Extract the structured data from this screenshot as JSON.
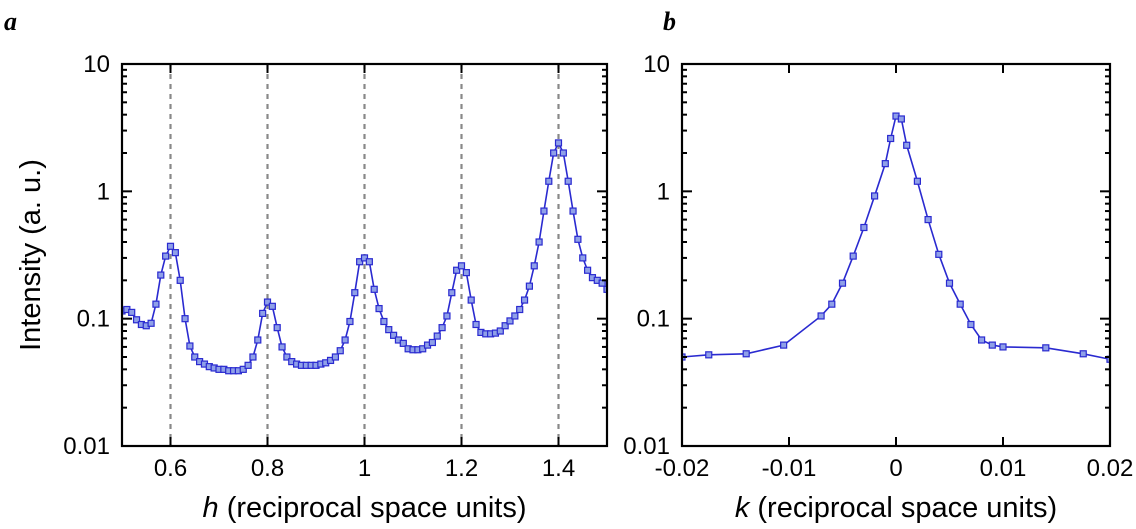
{
  "figure": {
    "panels": [
      "a",
      "b"
    ],
    "colors": {
      "series": "#2a2ad0",
      "marker_fill": "#8fa0e8",
      "reference_lines": "#888888"
    }
  },
  "chart_data": [
    {
      "panel": "a",
      "type": "line",
      "title": "",
      "xlabel_var": "h",
      "xlabel_rest": " (reciprocal space units)",
      "ylabel": "Intensity (a. u.)",
      "xlim": [
        0.5,
        1.5
      ],
      "ylim": [
        0.01,
        10
      ],
      "yscale": "log",
      "x_ticks": [
        0.6,
        0.8,
        1.0,
        1.2,
        1.4
      ],
      "x_tick_labels": [
        "0.6",
        "0.8",
        "1",
        "1.2",
        "1.4"
      ],
      "y_ticks": [
        0.01,
        0.1,
        1,
        10
      ],
      "y_tick_labels": [
        "0.01",
        "0.1",
        "1",
        "10"
      ],
      "reference_lines_x": [
        0.6,
        0.8,
        1.0,
        1.2,
        1.4
      ],
      "series": [
        {
          "marker": "square",
          "points": [
            [
              0.5,
              0.115
            ],
            [
              0.51,
              0.118
            ],
            [
              0.52,
              0.112
            ],
            [
              0.53,
              0.098
            ],
            [
              0.54,
              0.09
            ],
            [
              0.55,
              0.088
            ],
            [
              0.56,
              0.092
            ],
            [
              0.57,
              0.13
            ],
            [
              0.58,
              0.22
            ],
            [
              0.59,
              0.31
            ],
            [
              0.6,
              0.37
            ],
            [
              0.61,
              0.33
            ],
            [
              0.62,
              0.2
            ],
            [
              0.63,
              0.1
            ],
            [
              0.64,
              0.061
            ],
            [
              0.65,
              0.05
            ],
            [
              0.66,
              0.046
            ],
            [
              0.67,
              0.044
            ],
            [
              0.68,
              0.042
            ],
            [
              0.69,
              0.041
            ],
            [
              0.7,
              0.04
            ],
            [
              0.71,
              0.04
            ],
            [
              0.72,
              0.039
            ],
            [
              0.73,
              0.039
            ],
            [
              0.74,
              0.039
            ],
            [
              0.75,
              0.04
            ],
            [
              0.76,
              0.043
            ],
            [
              0.77,
              0.05
            ],
            [
              0.78,
              0.068
            ],
            [
              0.79,
              0.11
            ],
            [
              0.8,
              0.135
            ],
            [
              0.81,
              0.125
            ],
            [
              0.82,
              0.085
            ],
            [
              0.83,
              0.06
            ],
            [
              0.84,
              0.05
            ],
            [
              0.85,
              0.046
            ],
            [
              0.86,
              0.044
            ],
            [
              0.87,
              0.043
            ],
            [
              0.88,
              0.043
            ],
            [
              0.89,
              0.043
            ],
            [
              0.9,
              0.043
            ],
            [
              0.91,
              0.044
            ],
            [
              0.92,
              0.045
            ],
            [
              0.93,
              0.047
            ],
            [
              0.94,
              0.05
            ],
            [
              0.95,
              0.056
            ],
            [
              0.96,
              0.068
            ],
            [
              0.97,
              0.095
            ],
            [
              0.98,
              0.16
            ],
            [
              0.99,
              0.28
            ],
            [
              1.0,
              0.3
            ],
            [
              1.01,
              0.28
            ],
            [
              1.02,
              0.17
            ],
            [
              1.03,
              0.12
            ],
            [
              1.04,
              0.095
            ],
            [
              1.05,
              0.082
            ],
            [
              1.06,
              0.074
            ],
            [
              1.07,
              0.068
            ],
            [
              1.08,
              0.064
            ],
            [
              1.09,
              0.058
            ],
            [
              1.1,
              0.057
            ],
            [
              1.11,
              0.057
            ],
            [
              1.12,
              0.058
            ],
            [
              1.13,
              0.062
            ],
            [
              1.14,
              0.065
            ],
            [
              1.15,
              0.073
            ],
            [
              1.16,
              0.085
            ],
            [
              1.17,
              0.105
            ],
            [
              1.18,
              0.16
            ],
            [
              1.19,
              0.24
            ],
            [
              1.2,
              0.26
            ],
            [
              1.21,
              0.23
            ],
            [
              1.22,
              0.14
            ],
            [
              1.23,
              0.09
            ],
            [
              1.24,
              0.078
            ],
            [
              1.25,
              0.076
            ],
            [
              1.26,
              0.076
            ],
            [
              1.27,
              0.077
            ],
            [
              1.28,
              0.08
            ],
            [
              1.29,
              0.088
            ],
            [
              1.3,
              0.096
            ],
            [
              1.31,
              0.105
            ],
            [
              1.32,
              0.118
            ],
            [
              1.33,
              0.14
            ],
            [
              1.34,
              0.18
            ],
            [
              1.35,
              0.26
            ],
            [
              1.36,
              0.4
            ],
            [
              1.37,
              0.7
            ],
            [
              1.38,
              1.2
            ],
            [
              1.39,
              2.0
            ],
            [
              1.4,
              2.4
            ],
            [
              1.41,
              2.0
            ],
            [
              1.42,
              1.2
            ],
            [
              1.43,
              0.7
            ],
            [
              1.44,
              0.42
            ],
            [
              1.45,
              0.3
            ],
            [
              1.46,
              0.24
            ],
            [
              1.47,
              0.21
            ],
            [
              1.48,
              0.2
            ],
            [
              1.49,
              0.19
            ],
            [
              1.5,
              0.17
            ]
          ]
        }
      ]
    },
    {
      "panel": "b",
      "type": "line",
      "title": "",
      "xlabel_var": "k",
      "xlabel_rest": " (reciprocal space units)",
      "ylabel": "",
      "xlim": [
        -0.02,
        0.02
      ],
      "ylim": [
        0.01,
        10
      ],
      "yscale": "log",
      "x_ticks": [
        -0.02,
        -0.01,
        0,
        0.01,
        0.02
      ],
      "x_tick_labels": [
        "-0.02",
        "-0.01",
        "0",
        "0.01",
        "0.02"
      ],
      "y_ticks": [
        0.01,
        0.1,
        1,
        10
      ],
      "y_tick_labels": [
        "0.01",
        "0.1",
        "1",
        "10"
      ],
      "reference_lines_x": [],
      "series": [
        {
          "marker": "square",
          "points": [
            [
              -0.02,
              0.05
            ],
            [
              -0.0175,
              0.052
            ],
            [
              -0.014,
              0.053
            ],
            [
              -0.0105,
              0.062
            ],
            [
              -0.007,
              0.105
            ],
            [
              -0.006,
              0.13
            ],
            [
              -0.005,
              0.19
            ],
            [
              -0.004,
              0.31
            ],
            [
              -0.003,
              0.52
            ],
            [
              -0.002,
              0.92
            ],
            [
              -0.001,
              1.65
            ],
            [
              -0.0005,
              2.6
            ],
            [
              0.0,
              3.9
            ],
            [
              0.0005,
              3.7
            ],
            [
              0.001,
              2.3
            ],
            [
              0.002,
              1.2
            ],
            [
              0.003,
              0.6
            ],
            [
              0.004,
              0.32
            ],
            [
              0.005,
              0.19
            ],
            [
              0.006,
              0.13
            ],
            [
              0.007,
              0.09
            ],
            [
              0.008,
              0.068
            ],
            [
              0.009,
              0.062
            ],
            [
              0.01,
              0.06
            ],
            [
              0.014,
              0.059
            ],
            [
              0.0175,
              0.053
            ],
            [
              0.02,
              0.048
            ]
          ]
        }
      ]
    }
  ]
}
